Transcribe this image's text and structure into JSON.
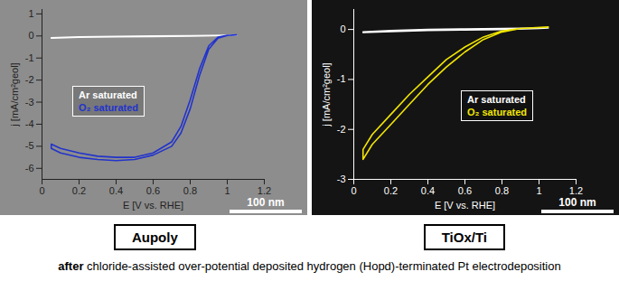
{
  "chart_data": [
    {
      "type": "line",
      "title": "Aupoly",
      "x_label": "E [V vs. RHE]",
      "y_label": "j [mA/cm²geol]",
      "xlim": [
        0,
        1.2
      ],
      "xticks": [
        0,
        0.2,
        0.4,
        0.6,
        0.8,
        1,
        1.2
      ],
      "ylim": [
        -6.5,
        1.2
      ],
      "yticks": [
        -6,
        -5,
        -4,
        -3,
        -2,
        -1,
        0,
        1
      ],
      "legend": "left",
      "annotations": [
        "100 nm"
      ],
      "series": [
        {
          "name": "Ar saturated",
          "color": "#ffffff",
          "x": [
            0.05,
            0.2,
            0.4,
            0.6,
            0.8,
            1.0,
            1.05,
            1.0,
            0.8,
            0.6,
            0.4,
            0.2,
            0.05
          ],
          "values": [
            -0.1,
            -0.06,
            -0.04,
            -0.03,
            -0.01,
            0.02,
            0.03,
            0.03,
            0.01,
            0.0,
            -0.02,
            -0.04,
            -0.08
          ]
        },
        {
          "name": "O₂ saturated",
          "color": "#2233cc",
          "x": [
            1.05,
            1.0,
            0.95,
            0.9,
            0.85,
            0.8,
            0.75,
            0.7,
            0.6,
            0.5,
            0.4,
            0.3,
            0.2,
            0.1,
            0.05,
            0.05,
            0.1,
            0.2,
            0.3,
            0.4,
            0.5,
            0.6,
            0.7,
            0.75,
            0.8,
            0.85,
            0.9,
            0.95,
            1.0,
            1.05
          ],
          "values": [
            0.05,
            0.02,
            -0.1,
            -0.6,
            -1.8,
            -3.3,
            -4.4,
            -5.0,
            -5.4,
            -5.6,
            -5.65,
            -5.6,
            -5.5,
            -5.3,
            -5.1,
            -4.9,
            -5.1,
            -5.3,
            -5.45,
            -5.5,
            -5.5,
            -5.3,
            -4.8,
            -4.1,
            -2.9,
            -1.5,
            -0.45,
            -0.05,
            0.03,
            0.05
          ]
        }
      ]
    },
    {
      "type": "line",
      "title": "TiOx/Ti",
      "x_label": "E [V vs. RHE]",
      "y_label": "j [mA/cm²geol]",
      "xlim": [
        0,
        1.2
      ],
      "xticks": [
        0,
        0.2,
        0.4,
        0.6,
        0.8,
        1,
        1.2
      ],
      "ylim": [
        -3,
        0.4
      ],
      "yticks": [
        -3,
        -2,
        -1,
        0
      ],
      "legend": "center",
      "annotations": [
        "100 nm"
      ],
      "series": [
        {
          "name": "Ar saturated",
          "color": "#ffffff",
          "x": [
            0.05,
            0.2,
            0.4,
            0.6,
            0.8,
            1.0,
            1.05,
            1.0,
            0.8,
            0.6,
            0.4,
            0.2,
            0.05
          ],
          "values": [
            -0.06,
            -0.04,
            -0.02,
            -0.01,
            0.0,
            0.02,
            0.03,
            0.03,
            0.02,
            0.01,
            0.0,
            -0.02,
            -0.05
          ]
        },
        {
          "name": "O₂ saturated",
          "color": "#f2e600",
          "x": [
            1.05,
            0.9,
            0.8,
            0.7,
            0.6,
            0.5,
            0.4,
            0.3,
            0.2,
            0.1,
            0.05,
            0.05,
            0.1,
            0.2,
            0.3,
            0.4,
            0.5,
            0.6,
            0.7,
            0.8,
            0.9,
            1.05
          ],
          "values": [
            0.05,
            0.02,
            -0.05,
            -0.2,
            -0.45,
            -0.75,
            -1.1,
            -1.5,
            -1.9,
            -2.3,
            -2.6,
            -2.4,
            -2.1,
            -1.7,
            -1.3,
            -0.95,
            -0.6,
            -0.35,
            -0.15,
            -0.03,
            0.02,
            0.05
          ]
        }
      ]
    }
  ],
  "caption": "after chloride-assisted over-potential deposited hydrogen (Hopd)-terminated Pt electrodeposition"
}
